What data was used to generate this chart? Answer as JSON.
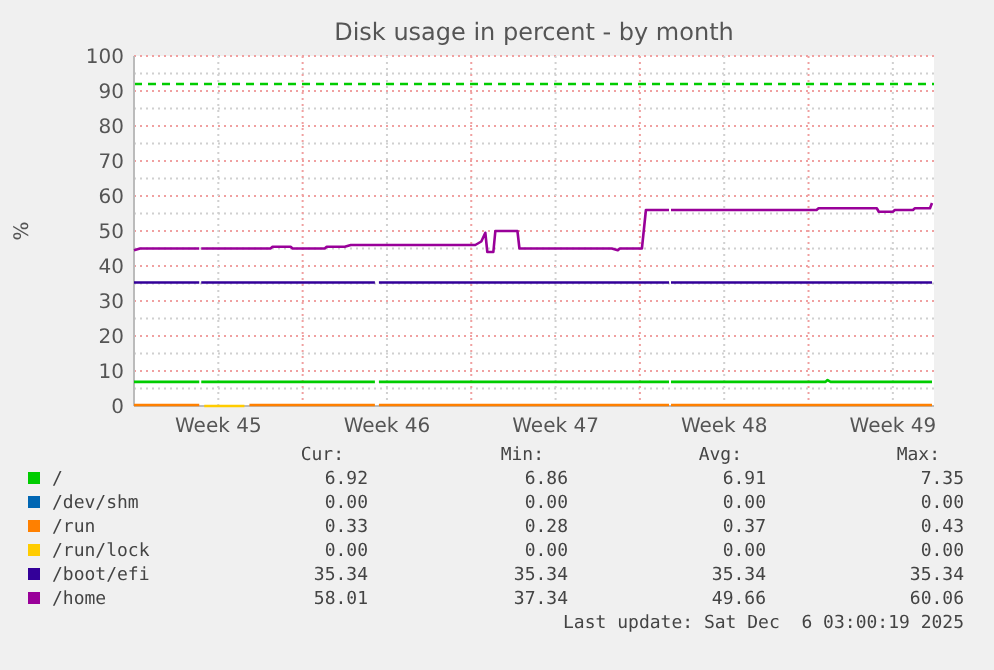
{
  "chart_data": {
    "type": "line",
    "title": "Disk usage in percent - by month",
    "ylabel": "%",
    "xlim": [
      "2025-11-03T00:00",
      "2025-12-06T05:00"
    ],
    "xticks": [
      {
        "value": "2025-11-06T12:00",
        "label": "Week 45"
      },
      {
        "value": "2025-11-10",
        "label": null
      },
      {
        "value": "2025-11-13T12:00",
        "label": "Week 46"
      },
      {
        "value": "2025-11-17",
        "label": null
      },
      {
        "value": "2025-11-20T12:00",
        "label": "Week 47"
      },
      {
        "value": "2025-11-24",
        "label": null
      },
      {
        "value": "2025-11-27T12:00",
        "label": "Week 48"
      },
      {
        "value": "2025-12-01",
        "label": null
      },
      {
        "value": "2025-12-04T12:00",
        "label": "Week 49"
      }
    ],
    "ylim": [
      0,
      100
    ],
    "yticks": [
      0,
      {
        "value": 5,
        "label": null
      },
      10,
      {
        "value": 15,
        "label": null
      },
      20,
      {
        "value": 25,
        "label": null
      },
      30,
      {
        "value": 35,
        "label": null
      },
      40,
      {
        "value": 45,
        "label": null
      },
      50,
      {
        "value": 55,
        "label": null
      },
      60,
      {
        "value": 65,
        "label": null
      },
      70,
      {
        "value": 75,
        "label": null
      },
      80,
      {
        "value": 85,
        "label": null
      },
      90,
      {
        "value": 95,
        "label": null
      },
      100
    ],
    "grid": true,
    "legend": "bottom",
    "ref_lines": [
      {
        "axis": "y",
        "value": 92,
        "color": "#00cc00",
        "line_style": "dashed"
      }
    ],
    "series": [
      {
        "name": "/",
        "color": "#00cc00",
        "x": [
          "2025-11-03T00:00",
          "2025-11-05T17:00",
          "2025-11-05T18:00",
          "2025-11-05T19:00",
          "2025-11-13T00:00",
          "2025-11-13T02:00",
          "2025-11-13T04:00",
          "2025-11-25T05:00",
          "2025-11-25T06:00",
          "2025-11-25T07:00",
          "2025-12-01T17:00",
          "2025-12-01T19:00",
          "2025-12-01T22:00",
          "2025-12-06T03:00"
        ],
        "values": [
          6.9,
          6.9,
          null,
          6.9,
          6.9,
          null,
          6.9,
          6.9,
          null,
          6.9,
          6.9,
          7.4,
          6.9,
          6.9
        ]
      },
      {
        "name": "/dev/shm",
        "color": "#0066b3"
      },
      {
        "name": "/run",
        "color": "#ff8000",
        "x": [
          "2025-11-03T00:00",
          "2025-11-05T17:00",
          "2025-11-05T18:00",
          "2025-11-07T19:00",
          "2025-11-13T00:00",
          "2025-11-13T02:00",
          "2025-11-13T04:00",
          "2025-11-25T05:00",
          "2025-11-25T06:00",
          "2025-11-25T07:00",
          "2025-12-06T03:00"
        ],
        "values": [
          0.3,
          0.3,
          null,
          0.3,
          0.3,
          null,
          0.3,
          0.3,
          null,
          0.3,
          0.3
        ]
      },
      {
        "name": "/run/lock",
        "color": "#ffcc00",
        "x": [
          "2025-11-05T22:00",
          "2025-11-07T14:00"
        ],
        "values": [
          0,
          0
        ]
      },
      {
        "name": "/boot/efi",
        "color": "#330099",
        "x": [
          "2025-11-03T00:00",
          "2025-11-05T17:00",
          "2025-11-05T18:00",
          "2025-11-05T19:00",
          "2025-11-13T00:00",
          "2025-11-13T02:00",
          "2025-11-13T04:00",
          "2025-11-25T05:00",
          "2025-11-25T06:00",
          "2025-11-25T07:00",
          "2025-12-06T03:00"
        ],
        "values": [
          35.3,
          35.3,
          null,
          35.3,
          35.3,
          null,
          35.3,
          35.3,
          null,
          35.3,
          35.3
        ]
      },
      {
        "name": "/home",
        "color": "#990099",
        "x": [
          "2025-11-03T00:00",
          "2025-11-03T06:00",
          "2025-11-05T17:00",
          "2025-11-05T18:00",
          "2025-11-05T19:00",
          "2025-11-08T16:00",
          "2025-11-08T18:00",
          "2025-11-09T12:00",
          "2025-11-09T14:00",
          "2025-11-10T22:00",
          "2025-11-11T00:00",
          "2025-11-11T18:00",
          "2025-11-12T00:00",
          "2025-11-12T02:00",
          "2025-11-17T04:00",
          "2025-11-17T10:00",
          "2025-11-17T14:00",
          "2025-11-17T16:00",
          "2025-11-17T22:00",
          "2025-11-18T00:00",
          "2025-11-18T22:00",
          "2025-11-19T00:00",
          "2025-11-22T20:00",
          "2025-11-23T02:00",
          "2025-11-23T04:00",
          "2025-11-24T02:00",
          "2025-11-24T06:00",
          "2025-11-25T05:00",
          "2025-11-25T06:00",
          "2025-11-25T07:00",
          "2025-12-01T08:00",
          "2025-12-01T10:00",
          "2025-12-03T20:00",
          "2025-12-03T22:00",
          "2025-12-04T12:00",
          "2025-12-04T14:00",
          "2025-12-05T08:00",
          "2025-12-05T10:00",
          "2025-12-06T01:00",
          "2025-12-06T03:00"
        ],
        "values": [
          44.5,
          45,
          45,
          null,
          45,
          45,
          45.5,
          45.5,
          45,
          45,
          45.5,
          45.5,
          46,
          46,
          46,
          47,
          49.5,
          44,
          44,
          50,
          50,
          45,
          45,
          44.5,
          45,
          45,
          56,
          56,
          null,
          56,
          56,
          56.5,
          56.5,
          55.5,
          55.5,
          56,
          56,
          56.5,
          56.5,
          58
        ]
      }
    ],
    "annotations": [
      "Cur:",
      "Min:",
      "Avg:",
      "Max:",
      "6.92",
      "6.86",
      "6.91",
      "7.35",
      "0.00",
      "0.00",
      "0.00",
      "0.00",
      "0.33",
      "0.28",
      "0.37",
      "0.43",
      "0.00",
      "0.00",
      "0.00",
      "0.00",
      "35.34",
      "35.34",
      "35.34",
      "35.34",
      "58.01",
      "37.34",
      "49.66",
      "60.06",
      "Last update: Sat Dec  6 03:00:19 2025"
    ]
  }
}
